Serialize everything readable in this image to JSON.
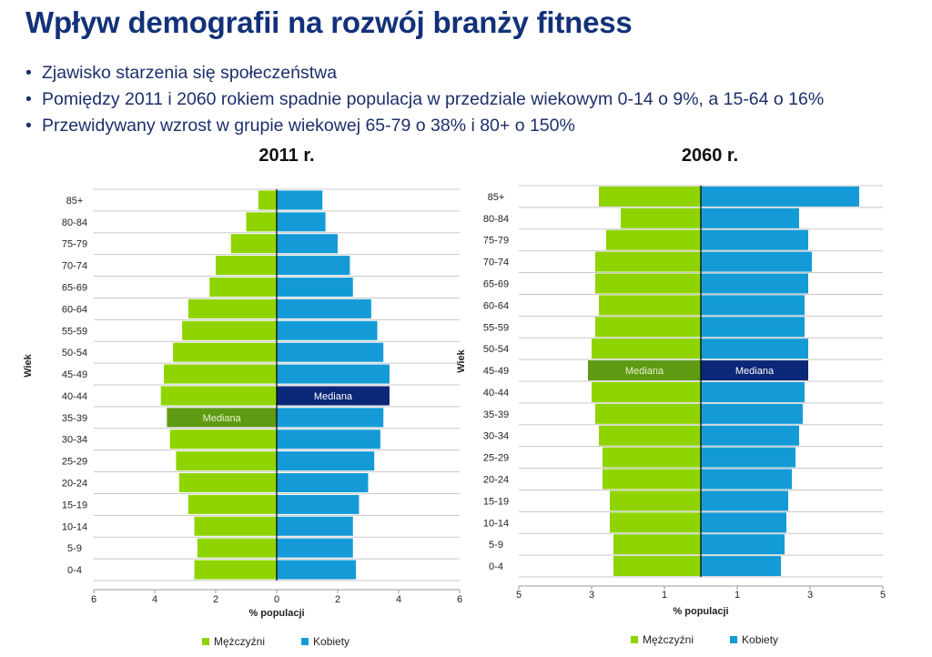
{
  "slide": {
    "title": "Wpływ demografii na rozwój branży fitness",
    "bullets": [
      "Zjawisko starzenia się społeczeństwa",
      "Pomiędzy 2011 i 2060 rokiem spadnie populacja w przedziale wiekowym 0-14 o 9%, a 15-64 o 16%",
      "Przewidywany wzrost w grupie wiekowej 65-79 o 38% i 80+ o 150%"
    ],
    "bullet_symbol": "•"
  },
  "colors": {
    "male": "#8fd400",
    "female": "#149bd7",
    "male_median": "#5e9a12",
    "female_median": "#0b2878",
    "axis": "#000000",
    "grid": "#c8c8c8",
    "title": "#12317a"
  },
  "chart_data": [
    {
      "type": "bar",
      "subtype": "population-pyramid",
      "title": "2011 r.",
      "xlabel": "% populacji",
      "ylabel": "Wiek",
      "categories": [
        "85+",
        "80-84",
        "75-79",
        "70-74",
        "65-69",
        "60-64",
        "55-59",
        "50-54",
        "45-49",
        "40-44",
        "35-39",
        "30-34",
        "25-29",
        "20-24",
        "15-19",
        "10-14",
        "5-9",
        "0-4"
      ],
      "xlim": [
        -6,
        6
      ],
      "x_ticks": [
        -6,
        -4,
        -2,
        0,
        2,
        4,
        6
      ],
      "x_tick_labels": [
        "6",
        "4",
        "2",
        "0",
        "2",
        "4",
        "6"
      ],
      "series": [
        {
          "name": "Mężczyźni",
          "side": "left",
          "values": [
            0.6,
            1.0,
            1.5,
            2.0,
            2.2,
            2.9,
            3.1,
            3.4,
            3.7,
            3.8,
            3.6,
            3.5,
            3.3,
            3.2,
            2.9,
            2.7,
            2.6,
            2.7
          ]
        },
        {
          "name": "Kobiety",
          "side": "right",
          "values": [
            1.5,
            1.6,
            2.0,
            2.4,
            2.5,
            3.1,
            3.3,
            3.5,
            3.7,
            3.7,
            3.5,
            3.4,
            3.2,
            3.0,
            2.7,
            2.5,
            2.5,
            2.6
          ]
        }
      ],
      "median": {
        "label": "Mediana",
        "male_category": "35-39",
        "female_category": "40-44"
      },
      "legend": [
        "Mężczyźni",
        "Kobiety"
      ],
      "grid": true
    },
    {
      "type": "bar",
      "subtype": "population-pyramid",
      "title": "2060 r.",
      "xlabel": "% populacji",
      "ylabel": "Wiek",
      "categories": [
        "85+",
        "80-84",
        "75-79",
        "70-74",
        "65-69",
        "60-64",
        "55-59",
        "50-54",
        "45-49",
        "40-44",
        "35-39",
        "30-34",
        "25-29",
        "20-24",
        "15-19",
        "10-14",
        "5-9",
        "0-4"
      ],
      "xlim": [
        -5,
        5
      ],
      "x_ticks": [
        -5,
        -3,
        -1,
        1,
        3,
        5
      ],
      "x_tick_labels": [
        "5",
        "3",
        "1",
        "1",
        "3",
        "5"
      ],
      "series": [
        {
          "name": "Mężczyźni",
          "side": "left",
          "values": [
            2.8,
            2.2,
            2.6,
            2.9,
            2.9,
            2.8,
            2.9,
            3.0,
            3.1,
            3.0,
            2.9,
            2.8,
            2.7,
            2.7,
            2.5,
            2.5,
            2.4,
            2.4
          ]
        },
        {
          "name": "Kobiety",
          "side": "right",
          "values": [
            4.35,
            2.7,
            2.95,
            3.05,
            2.95,
            2.85,
            2.85,
            2.95,
            2.95,
            2.85,
            2.8,
            2.7,
            2.6,
            2.5,
            2.4,
            2.35,
            2.3,
            2.2
          ]
        }
      ],
      "median": {
        "label": "Mediana",
        "male_category": "45-49",
        "female_category": "45-49"
      },
      "legend": [
        "Mężczyźni",
        "Kobiety"
      ],
      "grid": true
    }
  ]
}
